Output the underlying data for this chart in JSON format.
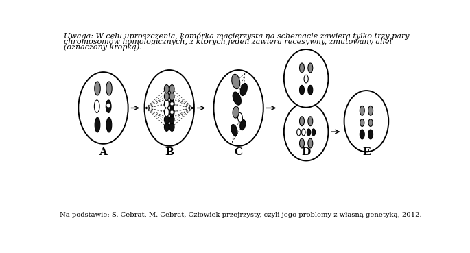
{
  "BLACK": "#111111",
  "GRAY": "#888888",
  "WHITE": "#ffffff",
  "labels": [
    "A",
    "B",
    "C",
    "D",
    "E"
  ],
  "top_text_line1": "Uwaga: W celu uproszczenia, komórka macierzysta na schemacie zawiera tylko trzy pary",
  "top_text_line2": "chromosomów homologicznych, z których jeden zawiera recesywny, zmutowany allel",
  "top_text_line3": "(oznaczony kropką).",
  "footer_normal1": "Na podstawie: S. Cebrat, M. Cebrat, ",
  "footer_italic": "Człowiek przejrzysty, czyli jego problemy z własną genetyką",
  "footer_normal2": ", 2012."
}
